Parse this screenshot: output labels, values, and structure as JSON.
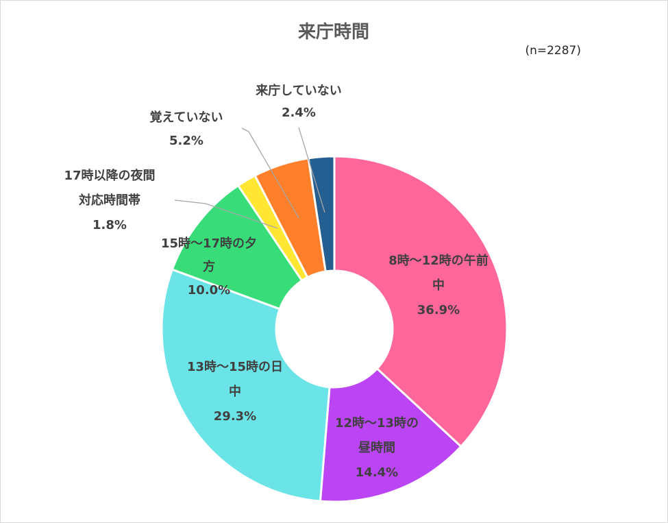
{
  "chart_data": {
    "type": "pie",
    "donut": true,
    "title": "来庁時間",
    "note": "(n=2287)",
    "unit": "%",
    "slices": [
      {
        "label": [
          "8時～12時の午前",
          "中"
        ],
        "value": 36.9,
        "value_label": "36.9%",
        "color": "#FF6699"
      },
      {
        "label": [
          "12時～13時の",
          "昼時間"
        ],
        "value": 14.4,
        "value_label": "14.4%",
        "color": "#BB44F5"
      },
      {
        "label": [
          "13時～15時の日",
          "中"
        ],
        "value": 29.3,
        "value_label": "29.3%",
        "color": "#6BE4E8"
      },
      {
        "label": [
          "15時～17時の夕",
          "方"
        ],
        "value": 10.0,
        "value_label": "10.0%",
        "color": "#38DD7A"
      },
      {
        "label": [
          "17時以降の夜間",
          "対応時間帯"
        ],
        "value": 1.8,
        "value_label": "1.8%",
        "color": "#FFE632"
      },
      {
        "label": [
          "覚えていない"
        ],
        "value": 5.2,
        "value_label": "5.2%",
        "color": "#FF7F2A"
      },
      {
        "label": [
          "来庁していない"
        ],
        "value": 2.4,
        "value_label": "2.4%",
        "color": "#255E91"
      }
    ]
  }
}
